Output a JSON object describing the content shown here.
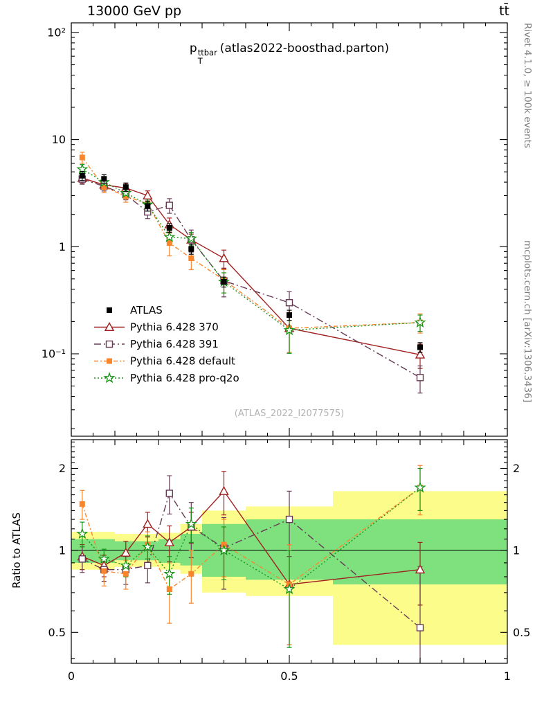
{
  "header": {
    "beam": "13000 GeV pp",
    "process": "tt̄"
  },
  "side": {
    "rivet": "Rivet 4.1.0, ≥ 100k events",
    "mcplots": "mcplots.cern.ch [arXiv:1306.3436]"
  },
  "chart_data": {
    "type": "line",
    "observable": {
      "base": "p",
      "sup": "ttbar",
      "sub": "T",
      "suffix": "(atlas2022-boosthad.parton)"
    },
    "watermark": "(ATLAS_2022_I2077575)",
    "ratio_ylabel": "Ratio to ATLAS",
    "x_range": [
      0,
      1
    ],
    "x_ticks": [
      {
        "v": 0,
        "label": "0"
      },
      {
        "v": 0.5,
        "label": "0.5"
      },
      {
        "v": 1,
        "label": "1"
      }
    ],
    "main_y_range": [
      0.017,
      123
    ],
    "main_y_ticks": [
      {
        "v": 100,
        "label": "10²"
      },
      {
        "v": 10,
        "label": "10"
      },
      {
        "v": 1,
        "label": "1"
      },
      {
        "v": 0.1,
        "label": "10⁻¹"
      }
    ],
    "ratio_y_range": [
      0.385,
      2.55
    ],
    "ratio_y_ticks": [
      {
        "v": 2,
        "label": "2"
      },
      {
        "v": 1,
        "label": "1"
      },
      {
        "v": 0.5,
        "label": "0.5"
      }
    ],
    "bin_edges": [
      0,
      0.05,
      0.1,
      0.15,
      0.2,
      0.25,
      0.3,
      0.4,
      0.6,
      1.0
    ],
    "x": [
      0.025,
      0.075,
      0.125,
      0.175,
      0.225,
      0.275,
      0.35,
      0.5,
      0.8
    ],
    "series": [
      {
        "name": "ATLAS",
        "color": "#000000",
        "marker": "square_filled",
        "line": "none",
        "values": [
          4.6,
          4.3,
          3.6,
          2.4,
          1.5,
          0.95,
          0.47,
          0.23,
          0.115
        ],
        "yerr": [
          0.45,
          0.4,
          0.33,
          0.25,
          0.14,
          0.1,
          0.05,
          0.025,
          0.012
        ]
      },
      {
        "name": "Pythia 6.428 370",
        "color": "#a02020",
        "marker": "triangle_open",
        "line": "solid",
        "values": [
          4.37,
          3.78,
          3.53,
          3.0,
          1.61,
          1.16,
          0.78,
          0.173,
          0.098
        ],
        "yerr": [
          0.45,
          0.35,
          0.36,
          0.32,
          0.24,
          0.15,
          0.15,
          0.07,
          0.025
        ],
        "ratio": [
          0.95,
          0.88,
          0.98,
          1.25,
          1.07,
          1.22,
          1.65,
          0.75,
          0.85
        ],
        "ratio_err": [
          0.1,
          0.08,
          0.1,
          0.13,
          0.16,
          0.16,
          0.3,
          0.3,
          0.22
        ]
      },
      {
        "name": "Pythia 6.428 391",
        "color": "#663a55",
        "marker": "square_open",
        "line": "dashdot",
        "values": [
          4.28,
          3.66,
          3.06,
          2.11,
          2.43,
          1.16,
          0.48,
          0.3,
          0.06
        ],
        "yerr": [
          0.45,
          0.35,
          0.32,
          0.28,
          0.38,
          0.27,
          0.14,
          0.08,
          0.017
        ],
        "ratio": [
          0.93,
          0.85,
          0.85,
          0.88,
          1.62,
          1.22,
          1.02,
          1.3,
          0.52
        ],
        "ratio_err": [
          0.1,
          0.08,
          0.1,
          0.12,
          0.26,
          0.28,
          0.3,
          0.35,
          0.35
        ]
      },
      {
        "name": "Pythia 6.428 default",
        "color": "#f9862d",
        "marker": "square_filled",
        "line": "dashdot2",
        "values": [
          6.81,
          3.61,
          2.95,
          2.52,
          1.08,
          0.78,
          0.49,
          0.173,
          0.196
        ],
        "yerr": [
          0.8,
          0.42,
          0.35,
          0.33,
          0.26,
          0.17,
          0.12,
          0.07,
          0.04
        ],
        "ratio": [
          1.48,
          0.84,
          0.82,
          1.05,
          0.72,
          0.82,
          1.05,
          0.75,
          1.7
        ],
        "ratio_err": [
          0.18,
          0.1,
          0.1,
          0.12,
          0.18,
          0.18,
          0.25,
          0.3,
          0.35
        ]
      },
      {
        "name": "Pythia 6.428 pro-q2o",
        "color": "#169416",
        "marker": "star_open",
        "line": "dotted",
        "values": [
          5.29,
          4.0,
          3.17,
          2.47,
          1.23,
          1.19,
          0.47,
          0.166,
          0.196
        ],
        "yerr": [
          0.55,
          0.38,
          0.3,
          0.3,
          0.18,
          0.17,
          0.1,
          0.065,
          0.034
        ],
        "ratio": [
          1.15,
          0.93,
          0.88,
          1.03,
          0.82,
          1.25,
          1.0,
          0.72,
          1.7
        ],
        "ratio_err": [
          0.12,
          0.08,
          0.08,
          0.1,
          0.13,
          0.18,
          0.22,
          0.28,
          0.3
        ]
      }
    ],
    "bands": {
      "colors": {
        "yellow": "#fcfc8b",
        "green": "#7ee17e"
      },
      "yellow": [
        [
          0.85,
          1.17
        ],
        [
          0.85,
          1.17
        ],
        [
          0.87,
          1.15
        ],
        [
          0.87,
          1.15
        ],
        [
          0.85,
          1.16
        ],
        [
          0.82,
          1.25
        ],
        [
          0.7,
          1.4
        ],
        [
          0.68,
          1.45
        ],
        [
          0.45,
          1.65
        ]
      ],
      "green": [
        [
          0.9,
          1.1
        ],
        [
          0.9,
          1.1
        ],
        [
          0.92,
          1.08
        ],
        [
          0.92,
          1.08
        ],
        [
          0.9,
          1.1
        ],
        [
          0.88,
          1.15
        ],
        [
          0.8,
          1.25
        ],
        [
          0.78,
          1.3
        ],
        [
          0.75,
          1.3
        ]
      ]
    }
  }
}
